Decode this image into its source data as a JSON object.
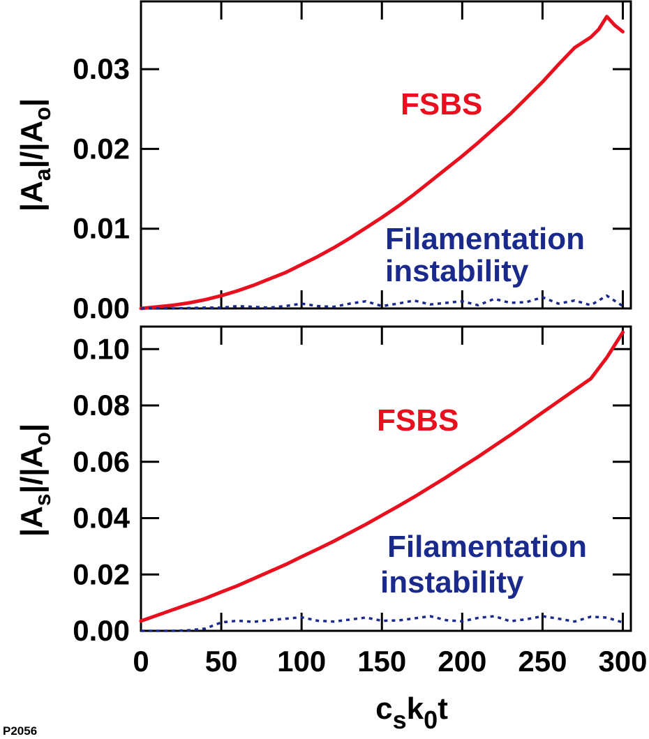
{
  "figure_code": "P2056",
  "xlabel": {
    "main1": "c",
    "sub1": "s",
    "main2": "k",
    "sub2": "0",
    "main3": "t"
  },
  "colors": {
    "fsbs": "#e8101e",
    "filamentation": "#1a2a8c",
    "axes": "#000000"
  },
  "chart_data": [
    {
      "type": "line",
      "panel": "top",
      "ylabel": {
        "p1": "|A",
        "s1": "a",
        "p2": "|/|A",
        "s2": "o",
        "p3": "|"
      },
      "xlim": [
        0,
        305
      ],
      "ylim": [
        0,
        0.0385
      ],
      "yticks": [
        "0.00",
        "0.01",
        "0.02",
        "0.03"
      ],
      "ytick_values": [
        0,
        0.01,
        0.02,
        0.03
      ],
      "xtick_values": [
        0,
        50,
        100,
        150,
        200,
        250,
        300
      ],
      "annotations": {
        "fsbs": "FSBS",
        "fil_line1": "Filamentation",
        "fil_line2": "instability"
      },
      "series": [
        {
          "name": "FSBS",
          "style": "solid",
          "x": [
            0,
            10,
            20,
            30,
            40,
            50,
            60,
            70,
            80,
            90,
            100,
            110,
            120,
            130,
            140,
            150,
            160,
            170,
            180,
            190,
            200,
            210,
            220,
            230,
            240,
            250,
            260,
            270,
            280,
            285,
            290,
            295,
            300
          ],
          "y": [
            0.0,
            0.0002,
            0.0004,
            0.0007,
            0.0011,
            0.0016,
            0.0022,
            0.0029,
            0.0037,
            0.0045,
            0.0055,
            0.0065,
            0.0076,
            0.0088,
            0.0101,
            0.0114,
            0.0128,
            0.0143,
            0.0159,
            0.0175,
            0.0191,
            0.0208,
            0.0226,
            0.0244,
            0.0264,
            0.0284,
            0.0306,
            0.0327,
            0.034,
            0.035,
            0.0366,
            0.0355,
            0.0347
          ]
        },
        {
          "name": "Filamentation instability",
          "style": "dotted",
          "x": [
            0,
            20,
            40,
            50,
            60,
            70,
            80,
            90,
            100,
            110,
            120,
            130,
            140,
            150,
            160,
            170,
            180,
            190,
            200,
            210,
            220,
            230,
            240,
            250,
            260,
            270,
            280,
            290,
            300
          ],
          "y": [
            0.0,
            0.0,
            0.0001,
            0.0001,
            0.0003,
            0.0002,
            0.0001,
            0.0003,
            0.0006,
            0.0003,
            0.0002,
            0.0006,
            0.0009,
            0.0003,
            0.0006,
            0.001,
            0.0005,
            0.0007,
            0.0009,
            0.0004,
            0.0012,
            0.0007,
            0.0008,
            0.0014,
            0.0006,
            0.001,
            0.0004,
            0.0016,
            0.0003
          ]
        }
      ]
    },
    {
      "type": "line",
      "panel": "bottom",
      "ylabel": {
        "p1": "|A",
        "s1": "s",
        "p2": "|/|A",
        "s2": "o",
        "p3": "|"
      },
      "xlim": [
        0,
        305
      ],
      "ylim": [
        0,
        0.108
      ],
      "yticks": [
        "0.00",
        "0.02",
        "0.04",
        "0.06",
        "0.08",
        "0.10"
      ],
      "ytick_values": [
        0,
        0.02,
        0.04,
        0.06,
        0.08,
        0.1
      ],
      "xtick_values": [
        0,
        50,
        100,
        150,
        200,
        250,
        300
      ],
      "xticks": [
        "0",
        "50",
        "100",
        "150",
        "200",
        "250",
        "300"
      ],
      "annotations": {
        "fsbs": "FSBS",
        "fil_line1": "Filamentation",
        "fil_line2": "instability"
      },
      "series": [
        {
          "name": "FSBS",
          "style": "solid",
          "x": [
            0,
            10,
            20,
            30,
            40,
            50,
            60,
            70,
            80,
            90,
            100,
            110,
            120,
            130,
            140,
            150,
            160,
            170,
            180,
            190,
            200,
            210,
            220,
            230,
            240,
            250,
            260,
            270,
            280,
            290,
            300
          ],
          "y": [
            0.0035,
            0.0055,
            0.0075,
            0.0095,
            0.0115,
            0.0138,
            0.016,
            0.0185,
            0.021,
            0.0235,
            0.0263,
            0.029,
            0.0318,
            0.0348,
            0.0378,
            0.041,
            0.0442,
            0.0475,
            0.051,
            0.0545,
            0.0582,
            0.0618,
            0.0657,
            0.0695,
            0.0735,
            0.0775,
            0.0815,
            0.0855,
            0.0895,
            0.097,
            0.106
          ]
        },
        {
          "name": "Filamentation instability",
          "style": "dotted",
          "x": [
            0,
            20,
            30,
            40,
            50,
            60,
            70,
            80,
            90,
            100,
            110,
            120,
            130,
            140,
            150,
            160,
            170,
            180,
            190,
            200,
            210,
            220,
            230,
            240,
            250,
            260,
            270,
            280,
            290,
            300
          ],
          "y": [
            0.0,
            0.0,
            0.0002,
            0.0008,
            0.003,
            0.0036,
            0.0032,
            0.0038,
            0.0043,
            0.0048,
            0.0036,
            0.0033,
            0.004,
            0.0047,
            0.0036,
            0.0037,
            0.0044,
            0.0052,
            0.0038,
            0.0034,
            0.0046,
            0.0052,
            0.0034,
            0.0041,
            0.0052,
            0.0043,
            0.0033,
            0.005,
            0.0047,
            0.003
          ]
        }
      ]
    }
  ]
}
